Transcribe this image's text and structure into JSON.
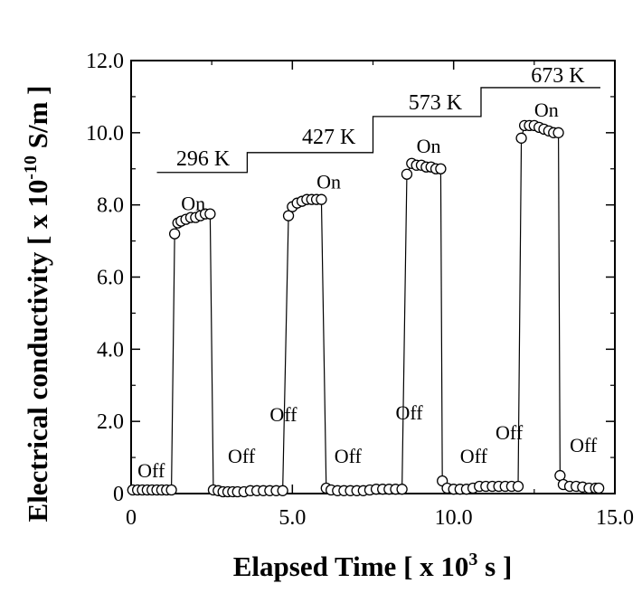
{
  "chart_data": {
    "type": "scatter",
    "title": "",
    "xlabel": {
      "main": "Elapsed Time [ x 10",
      "exp": "3",
      "unit": " s ]"
    },
    "ylabel": {
      "main": "Electrical conductivity  [ x 10",
      "exp": "-10",
      "unit": " S/m ]"
    },
    "xlim": [
      0,
      15
    ],
    "ylim": [
      0,
      12
    ],
    "x_ticks": [
      0,
      5,
      10,
      15
    ],
    "x_tick_labels": [
      "0",
      "5.0",
      "10.0",
      "15.0"
    ],
    "y_ticks": [
      0,
      2,
      4,
      6,
      8,
      10,
      12
    ],
    "y_tick_labels": [
      "0",
      "2.0",
      "4.0",
      "6.0",
      "8.0",
      "10.0",
      "12.0"
    ],
    "grid": false,
    "series": [
      {
        "marker": "open-circle",
        "connected": true,
        "points": [
          [
            0.05,
            0.1
          ],
          [
            0.2,
            0.1
          ],
          [
            0.35,
            0.1
          ],
          [
            0.5,
            0.1
          ],
          [
            0.65,
            0.1
          ],
          [
            0.8,
            0.1
          ],
          [
            0.95,
            0.1
          ],
          [
            1.1,
            0.1
          ],
          [
            1.25,
            0.1
          ],
          [
            1.35,
            7.2
          ],
          [
            1.45,
            7.5
          ],
          [
            1.55,
            7.55
          ],
          [
            1.7,
            7.6
          ],
          [
            1.85,
            7.65
          ],
          [
            2.0,
            7.65
          ],
          [
            2.15,
            7.7
          ],
          [
            2.3,
            7.75
          ],
          [
            2.45,
            7.75
          ],
          [
            2.55,
            0.1
          ],
          [
            2.7,
            0.08
          ],
          [
            2.85,
            0.05
          ],
          [
            3.0,
            0.05
          ],
          [
            3.15,
            0.05
          ],
          [
            3.3,
            0.05
          ],
          [
            3.5,
            0.05
          ],
          [
            3.7,
            0.08
          ],
          [
            3.9,
            0.08
          ],
          [
            4.1,
            0.08
          ],
          [
            4.3,
            0.08
          ],
          [
            4.5,
            0.08
          ],
          [
            4.7,
            0.08
          ],
          [
            4.88,
            7.7
          ],
          [
            5.0,
            7.95
          ],
          [
            5.15,
            8.05
          ],
          [
            5.3,
            8.1
          ],
          [
            5.45,
            8.15
          ],
          [
            5.6,
            8.15
          ],
          [
            5.75,
            8.15
          ],
          [
            5.9,
            8.15
          ],
          [
            6.05,
            0.15
          ],
          [
            6.2,
            0.1
          ],
          [
            6.4,
            0.08
          ],
          [
            6.6,
            0.08
          ],
          [
            6.8,
            0.08
          ],
          [
            7.0,
            0.08
          ],
          [
            7.2,
            0.08
          ],
          [
            7.4,
            0.1
          ],
          [
            7.6,
            0.12
          ],
          [
            7.8,
            0.12
          ],
          [
            8.0,
            0.12
          ],
          [
            8.2,
            0.12
          ],
          [
            8.4,
            0.12
          ],
          [
            8.55,
            8.85
          ],
          [
            8.7,
            9.15
          ],
          [
            8.85,
            9.1
          ],
          [
            9.0,
            9.1
          ],
          [
            9.15,
            9.05
          ],
          [
            9.3,
            9.05
          ],
          [
            9.45,
            9.0
          ],
          [
            9.6,
            9.0
          ],
          [
            9.65,
            0.35
          ],
          [
            9.8,
            0.15
          ],
          [
            10.0,
            0.12
          ],
          [
            10.2,
            0.12
          ],
          [
            10.4,
            0.12
          ],
          [
            10.6,
            0.15
          ],
          [
            10.8,
            0.2
          ],
          [
            11.0,
            0.2
          ],
          [
            11.2,
            0.2
          ],
          [
            11.4,
            0.2
          ],
          [
            11.6,
            0.2
          ],
          [
            11.8,
            0.2
          ],
          [
            12.0,
            0.2
          ],
          [
            12.1,
            9.85
          ],
          [
            12.2,
            10.2
          ],
          [
            12.35,
            10.2
          ],
          [
            12.5,
            10.2
          ],
          [
            12.65,
            10.15
          ],
          [
            12.8,
            10.1
          ],
          [
            12.95,
            10.05
          ],
          [
            13.1,
            10.0
          ],
          [
            13.25,
            10.0
          ],
          [
            13.3,
            0.5
          ],
          [
            13.4,
            0.25
          ],
          [
            13.6,
            0.2
          ],
          [
            13.8,
            0.2
          ],
          [
            14.0,
            0.18
          ],
          [
            14.2,
            0.15
          ],
          [
            14.4,
            0.15
          ],
          [
            14.5,
            0.15
          ]
        ]
      }
    ],
    "temperature_step": {
      "points": [
        [
          0.8,
          8.9
        ],
        [
          3.6,
          8.9
        ],
        [
          3.6,
          9.45
        ],
        [
          7.5,
          9.45
        ],
        [
          7.5,
          10.45
        ],
        [
          10.85,
          10.45
        ],
        [
          10.85,
          11.25
        ],
        [
          14.55,
          11.25
        ]
      ],
      "labels": [
        {
          "text": "296 K",
          "x": 1.4,
          "y": 9.1
        },
        {
          "text": "427 K",
          "x": 5.3,
          "y": 9.7
        },
        {
          "text": "573 K",
          "x": 8.6,
          "y": 10.65
        },
        {
          "text": "673 K",
          "x": 12.4,
          "y": 11.4
        }
      ]
    },
    "annotations": [
      {
        "text": "Off",
        "x": 0.2,
        "y": 0.45
      },
      {
        "text": "On",
        "x": 1.55,
        "y": 7.85
      },
      {
        "text": "Off",
        "x": 3.0,
        "y": 0.85
      },
      {
        "text": "Off",
        "x": 4.3,
        "y": 2.0
      },
      {
        "text": "Off",
        "x": 6.3,
        "y": 0.85
      },
      {
        "text": "On",
        "x": 5.75,
        "y": 8.45
      },
      {
        "text": "Off",
        "x": 8.2,
        "y": 2.05
      },
      {
        "text": "On",
        "x": 8.85,
        "y": 9.45
      },
      {
        "text": "Off",
        "x": 10.2,
        "y": 0.85
      },
      {
        "text": "Off",
        "x": 11.3,
        "y": 1.5
      },
      {
        "text": "On",
        "x": 12.5,
        "y": 10.45
      },
      {
        "text": "Off",
        "x": 13.6,
        "y": 1.15
      }
    ]
  }
}
